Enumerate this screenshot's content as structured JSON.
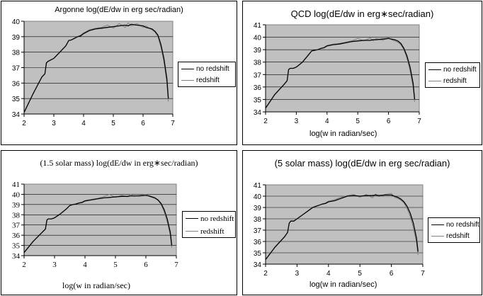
{
  "colors": {
    "plot_area": "#c0c0c0",
    "gridline": "#000000",
    "no_redshift": "#000000",
    "redshift": "#808080"
  },
  "chart_data": [
    {
      "type": "line",
      "title": "Argonne log(dE/dw in erg  sec/radian)",
      "xlabel": "",
      "ylabel": "",
      "xlim": [
        2,
        7
      ],
      "ylim": [
        34,
        40
      ],
      "xticks": [
        "2",
        "3",
        "4",
        "5",
        "6",
        "7"
      ],
      "yticks": [
        "34",
        "35",
        "36",
        "37",
        "38",
        "39",
        "40"
      ],
      "grid": "horizontal",
      "legend_position": "right",
      "series": [
        {
          "name": "no redshift",
          "x": [
            2.0,
            2.3,
            2.6,
            2.7,
            2.75,
            2.8,
            2.9,
            3.0,
            3.2,
            3.4,
            3.5,
            3.6,
            3.7,
            3.8,
            3.9,
            4.0,
            4.2,
            4.4,
            4.6,
            4.8,
            5.0,
            5.2,
            5.4,
            5.5,
            5.6,
            5.8,
            6.0,
            6.1,
            6.2,
            6.3,
            6.4,
            6.5,
            6.6,
            6.7,
            6.8,
            6.85
          ],
          "y": [
            34.1,
            35.3,
            36.4,
            36.6,
            37.3,
            37.4,
            37.5,
            37.6,
            38.0,
            38.4,
            38.75,
            38.8,
            38.9,
            39.0,
            39.05,
            39.2,
            39.4,
            39.5,
            39.55,
            39.6,
            39.65,
            39.7,
            39.75,
            39.7,
            39.8,
            39.75,
            39.7,
            39.6,
            39.55,
            39.5,
            39.35,
            39.1,
            38.5,
            37.6,
            36.3,
            35.0
          ]
        },
        {
          "name": "redshift",
          "x": [
            2.0,
            2.3,
            2.6,
            2.7,
            2.75,
            2.8,
            2.9,
            3.0,
            3.2,
            3.4,
            3.5,
            3.6,
            3.7,
            3.8,
            3.9,
            4.0,
            4.2,
            4.4,
            4.6,
            4.8,
            5.0,
            5.2,
            5.4,
            5.5,
            5.6,
            5.8,
            6.0,
            6.1,
            6.2,
            6.3,
            6.4,
            6.5,
            6.6,
            6.7,
            6.8,
            6.85
          ],
          "y": [
            34.1,
            35.3,
            36.4,
            36.6,
            37.3,
            37.4,
            37.5,
            37.6,
            38.0,
            38.4,
            38.75,
            38.8,
            38.9,
            39.0,
            39.1,
            39.25,
            39.45,
            39.55,
            39.6,
            39.75,
            39.55,
            39.85,
            39.6,
            39.9,
            39.7,
            39.85,
            39.6,
            39.7,
            39.55,
            39.45,
            39.3,
            39.0,
            38.3,
            37.4,
            36.0,
            34.8
          ]
        }
      ]
    },
    {
      "type": "line",
      "title": "QCD log(dE/dw in erg∗sec/radian)",
      "xlabel": "log(w in radian/sec)",
      "ylabel": "",
      "xlim": [
        2,
        7
      ],
      "ylim": [
        34,
        41
      ],
      "xticks": [
        "2",
        "3",
        "4",
        "5",
        "6",
        "7"
      ],
      "yticks": [
        "34",
        "35",
        "36",
        "37",
        "38",
        "39",
        "40",
        "41"
      ],
      "grid": "horizontal",
      "legend_position": "right",
      "series": [
        {
          "name": "no redshift",
          "x": [
            2.0,
            2.3,
            2.6,
            2.7,
            2.75,
            2.8,
            2.9,
            3.0,
            3.2,
            3.4,
            3.5,
            3.6,
            3.7,
            3.8,
            3.9,
            4.0,
            4.2,
            4.4,
            4.6,
            4.8,
            5.0,
            5.2,
            5.4,
            5.5,
            5.6,
            5.8,
            6.0,
            6.1,
            6.2,
            6.3,
            6.4,
            6.5,
            6.6,
            6.7,
            6.8,
            6.85
          ],
          "y": [
            34.3,
            35.4,
            36.2,
            36.5,
            37.4,
            37.5,
            37.5,
            37.6,
            38.0,
            38.6,
            38.9,
            38.95,
            39.0,
            39.1,
            39.15,
            39.3,
            39.4,
            39.45,
            39.55,
            39.65,
            39.7,
            39.75,
            39.75,
            39.8,
            39.8,
            39.85,
            39.9,
            39.85,
            39.8,
            39.7,
            39.5,
            39.1,
            38.5,
            37.6,
            36.3,
            35.0
          ]
        },
        {
          "name": "redshift",
          "x": [
            2.0,
            2.3,
            2.6,
            2.7,
            2.75,
            2.8,
            2.9,
            3.0,
            3.2,
            3.4,
            3.5,
            3.6,
            3.7,
            3.8,
            3.9,
            4.0,
            4.2,
            4.4,
            4.6,
            4.8,
            5.0,
            5.2,
            5.4,
            5.5,
            5.6,
            5.8,
            6.0,
            6.1,
            6.2,
            6.3,
            6.4,
            6.5,
            6.6,
            6.7,
            6.8,
            6.85
          ],
          "y": [
            34.3,
            35.4,
            36.2,
            36.5,
            37.4,
            37.5,
            37.5,
            37.6,
            38.0,
            38.6,
            38.9,
            38.95,
            39.0,
            39.1,
            39.2,
            39.35,
            39.45,
            39.5,
            39.6,
            39.7,
            39.9,
            39.7,
            39.95,
            39.7,
            39.9,
            39.75,
            39.95,
            39.8,
            39.7,
            39.6,
            39.4,
            39.0,
            38.3,
            37.3,
            36.0,
            34.8
          ]
        }
      ]
    },
    {
      "type": "line",
      "title": "(1.5 solar mass)  log(dE/dw in erg∗sec/radian)",
      "xlabel": "log(w in radian/sec)",
      "ylabel": "",
      "xlim": [
        2,
        7
      ],
      "ylim": [
        34,
        41
      ],
      "xticks": [
        "2",
        "3",
        "4",
        "5",
        "6",
        "7"
      ],
      "yticks": [
        "34",
        "35",
        "36",
        "37",
        "38",
        "39",
        "40",
        "41"
      ],
      "grid": "horizontal",
      "legend_position": "right",
      "series": [
        {
          "name": "no redshift",
          "x": [
            2.0,
            2.3,
            2.6,
            2.7,
            2.75,
            2.8,
            2.9,
            3.0,
            3.2,
            3.4,
            3.5,
            3.6,
            3.7,
            3.8,
            3.9,
            4.0,
            4.2,
            4.4,
            4.6,
            4.8,
            5.0,
            5.2,
            5.4,
            5.5,
            5.6,
            5.8,
            6.0,
            6.1,
            6.2,
            6.3,
            6.4,
            6.5,
            6.6,
            6.7,
            6.8,
            6.85
          ],
          "y": [
            34.3,
            35.4,
            36.3,
            36.6,
            37.5,
            37.6,
            37.6,
            37.7,
            38.1,
            38.6,
            38.9,
            39.0,
            39.05,
            39.15,
            39.2,
            39.35,
            39.45,
            39.55,
            39.65,
            39.7,
            39.75,
            39.8,
            39.8,
            39.85,
            39.85,
            39.85,
            39.9,
            39.85,
            39.75,
            39.65,
            39.45,
            39.1,
            38.5,
            37.6,
            36.3,
            35.0
          ]
        },
        {
          "name": "redshift",
          "x": [
            2.0,
            2.3,
            2.6,
            2.7,
            2.75,
            2.8,
            2.9,
            3.0,
            3.2,
            3.4,
            3.5,
            3.6,
            3.7,
            3.8,
            3.9,
            4.0,
            4.2,
            4.4,
            4.6,
            4.8,
            5.0,
            5.2,
            5.4,
            5.5,
            5.6,
            5.8,
            6.0,
            6.1,
            6.2,
            6.3,
            6.4,
            6.5,
            6.6,
            6.7,
            6.8,
            6.85
          ],
          "y": [
            34.3,
            35.4,
            36.3,
            36.6,
            37.5,
            37.6,
            37.6,
            37.7,
            38.1,
            38.6,
            38.9,
            39.0,
            39.05,
            39.15,
            39.25,
            39.4,
            39.5,
            39.6,
            39.75,
            40.0,
            39.7,
            39.9,
            39.75,
            40.0,
            39.8,
            39.9,
            40.0,
            39.8,
            39.7,
            39.6,
            39.4,
            39.0,
            38.3,
            37.3,
            36.0,
            34.8
          ]
        }
      ]
    },
    {
      "type": "line",
      "title": "(5 solar mass)  log(dE/dw in erg  sec/radian)",
      "xlabel": "log(w in radian/sec)",
      "ylabel": "",
      "xlim": [
        2,
        7
      ],
      "ylim": [
        34,
        41
      ],
      "xticks": [
        "2",
        "3",
        "4",
        "5",
        "6",
        "7"
      ],
      "yticks": [
        "34",
        "35",
        "36",
        "37",
        "38",
        "39",
        "40",
        "41"
      ],
      "grid": "horizontal",
      "legend_position": "right",
      "series": [
        {
          "name": "no redshift",
          "x": [
            2.0,
            2.3,
            2.6,
            2.7,
            2.75,
            2.8,
            2.9,
            3.0,
            3.2,
            3.4,
            3.5,
            3.6,
            3.7,
            3.8,
            3.9,
            4.0,
            4.2,
            4.4,
            4.6,
            4.8,
            5.0,
            5.2,
            5.4,
            5.5,
            5.6,
            5.8,
            6.0,
            6.1,
            6.2,
            6.3,
            6.4,
            6.5,
            6.6,
            6.7,
            6.8,
            6.85
          ],
          "y": [
            34.4,
            35.5,
            36.4,
            36.8,
            37.6,
            37.8,
            37.8,
            38.0,
            38.4,
            38.8,
            39.0,
            39.1,
            39.2,
            39.3,
            39.35,
            39.5,
            39.6,
            39.8,
            40.0,
            40.05,
            40.0,
            40.05,
            40.05,
            40.1,
            40.05,
            40.1,
            40.1,
            40.0,
            39.9,
            39.75,
            39.5,
            39.1,
            38.5,
            37.6,
            36.3,
            35.1
          ]
        },
        {
          "name": "redshift",
          "x": [
            2.0,
            2.3,
            2.6,
            2.7,
            2.75,
            2.8,
            2.9,
            3.0,
            3.2,
            3.4,
            3.5,
            3.6,
            3.7,
            3.8,
            3.9,
            4.0,
            4.2,
            4.4,
            4.6,
            4.8,
            5.0,
            5.2,
            5.4,
            5.5,
            5.6,
            5.8,
            6.0,
            6.1,
            6.2,
            6.3,
            6.4,
            6.5,
            6.6,
            6.7,
            6.8,
            6.85
          ],
          "y": [
            34.4,
            35.5,
            36.4,
            36.8,
            37.6,
            37.8,
            37.8,
            38.0,
            38.4,
            38.8,
            39.0,
            39.1,
            39.2,
            39.3,
            39.4,
            39.55,
            39.7,
            39.9,
            40.05,
            40.15,
            39.9,
            40.15,
            39.85,
            40.2,
            39.95,
            40.15,
            40.25,
            39.9,
            39.8,
            39.65,
            39.4,
            38.9,
            38.2,
            37.2,
            35.9,
            34.8
          ]
        }
      ]
    }
  ]
}
